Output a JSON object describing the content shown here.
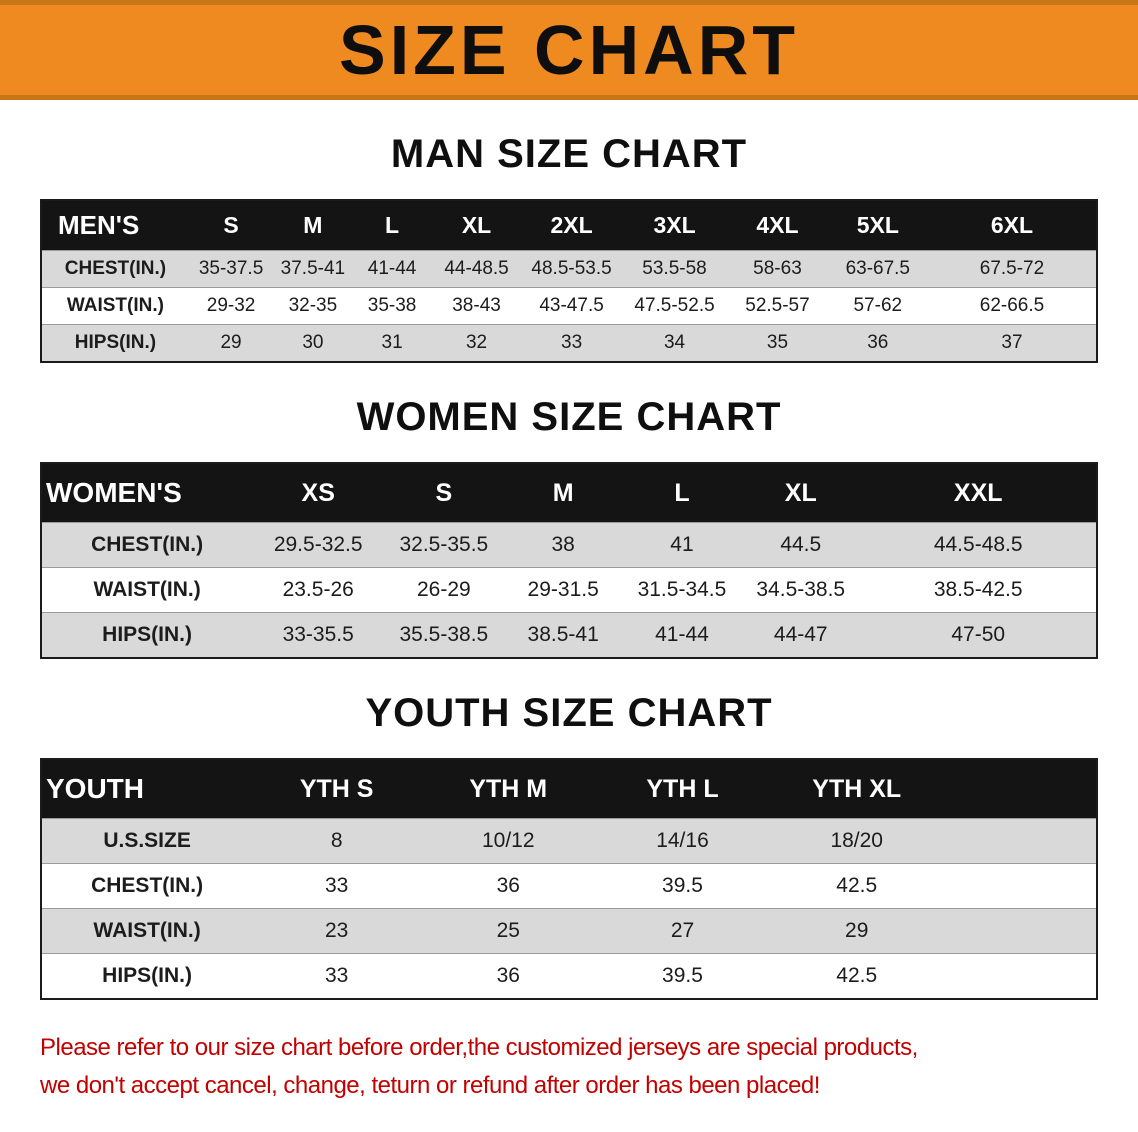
{
  "banner": {
    "title": "SIZE CHART"
  },
  "colors": {
    "banner_orange": "#EF8A20",
    "table_header_black": "#141414",
    "row_shade_gray": "#D9D9D9",
    "disclaimer_red": "#C30000"
  },
  "sections": [
    {
      "heading": "MAN SIZE CHART",
      "table": {
        "header": [
          "MEN'S",
          "S",
          "M",
          "L",
          "XL",
          "2XL",
          "3XL",
          "4XL",
          "5XL",
          "6XL"
        ],
        "rows": [
          [
            "CHEST(IN.)",
            "35-37.5",
            "37.5-41",
            "41-44",
            "44-48.5",
            "48.5-53.5",
            "53.5-58",
            "58-63",
            "63-67.5",
            "67.5-72"
          ],
          [
            "WAIST(IN.)",
            "29-32",
            "32-35",
            "35-38",
            "38-43",
            "43-47.5",
            "47.5-52.5",
            "52.5-57",
            "57-62",
            "62-66.5"
          ],
          [
            "HIPS(IN.)",
            "29",
            "30",
            "31",
            "32",
            "33",
            "34",
            "35",
            "36",
            "37"
          ]
        ]
      }
    },
    {
      "heading": "WOMEN SIZE CHART",
      "table": {
        "header": [
          "WOMEN'S",
          "XS",
          "S",
          "M",
          "L",
          "XL",
          "XXL"
        ],
        "rows": [
          [
            "CHEST(IN.)",
            "29.5-32.5",
            "32.5-35.5",
            "38",
            "41",
            "44.5",
            "44.5-48.5"
          ],
          [
            "WAIST(IN.)",
            "23.5-26",
            "26-29",
            "29-31.5",
            "31.5-34.5",
            "34.5-38.5",
            "38.5-42.5"
          ],
          [
            "HIPS(IN.)",
            "33-35.5",
            "35.5-38.5",
            "38.5-41",
            "41-44",
            "44-47",
            "47-50"
          ]
        ]
      }
    },
    {
      "heading": "YOUTH SIZE CHART",
      "table": {
        "header": [
          "YOUTH",
          "YTH S",
          "YTH M",
          "YTH L",
          "YTH XL"
        ],
        "rows": [
          [
            "U.S.SIZE",
            "8",
            "10/12",
            "14/16",
            "18/20"
          ],
          [
            "CHEST(IN.)",
            "33",
            "36",
            "39.5",
            "42.5"
          ],
          [
            "WAIST(IN.)",
            "23",
            "25",
            "27",
            "29"
          ],
          [
            "HIPS(IN.)",
            "33",
            "36",
            "39.5",
            "42.5"
          ]
        ]
      }
    }
  ],
  "disclaimer": {
    "line1": "Please refer to our size chart before order,the customized jerseys are special products,",
    "line2": "we don't accept cancel, change, teturn or refund after order has been placed!"
  }
}
